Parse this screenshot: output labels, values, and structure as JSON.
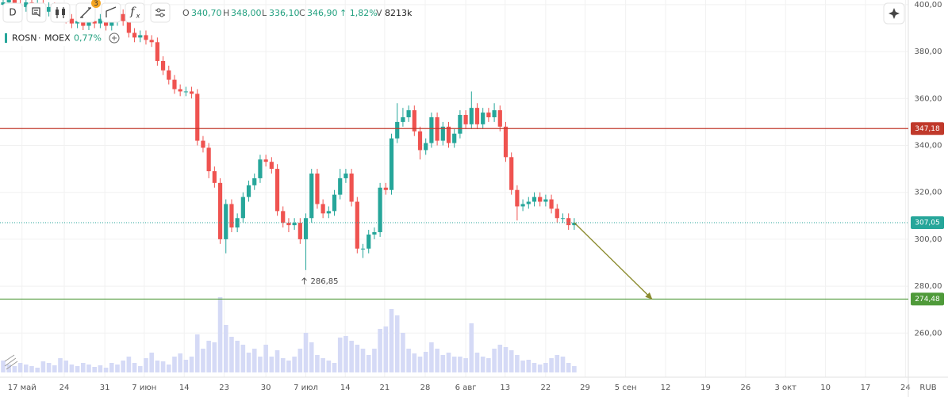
{
  "header": {
    "interval": "D",
    "badge": "3",
    "fx_main": "f",
    "fx_sub": "x",
    "ohlc": [
      {
        "key": "O",
        "value": "340,70"
      },
      {
        "key": "H",
        "value": "348,00"
      },
      {
        "key": "L",
        "value": "336,10"
      },
      {
        "key": "C",
        "value": "346,90"
      }
    ],
    "change": "↑ 1,82%",
    "volume_key": "V",
    "volume": "8213k",
    "symbol": "ROSN",
    "separator": "·",
    "exchange": "MOEX",
    "symbol_change": "0,77%",
    "currency": "RUB"
  },
  "chart_data": {
    "type": "candlestick",
    "categories": [
      null,
      null,
      null,
      null,
      null,
      null,
      null,
      null,
      null,
      null,
      null,
      null,
      null,
      null,
      null,
      null,
      null,
      null,
      null,
      null,
      null,
      null,
      null,
      null,
      null,
      null,
      null,
      null,
      null,
      null,
      null,
      null,
      null,
      null,
      null,
      null,
      null,
      null,
      null,
      null,
      null,
      null,
      null,
      null,
      null,
      null,
      null,
      null,
      null,
      null,
      null,
      null,
      null,
      null,
      null,
      null,
      null,
      null,
      null,
      null,
      null,
      null,
      null,
      null,
      null,
      null,
      null,
      null,
      null,
      null,
      null,
      null,
      null,
      null,
      null,
      null,
      null,
      null,
      null,
      null,
      null,
      null,
      null,
      null,
      null,
      null,
      null,
      null,
      null,
      null,
      null,
      null,
      null,
      null,
      null,
      null,
      null,
      null,
      null,
      null,
      null
    ],
    "open": [
      400,
      401,
      402,
      400,
      399,
      401,
      398,
      400,
      397,
      399,
      396,
      398,
      394,
      392,
      393,
      391,
      393,
      392,
      394,
      391,
      393,
      396,
      393,
      388,
      386,
      387,
      385,
      384,
      376,
      372,
      368,
      364,
      363,
      363,
      362,
      342,
      339,
      329,
      324,
      300,
      315,
      305,
      309,
      318,
      323,
      326,
      334,
      333,
      330,
      312,
      307,
      306,
      307,
      300,
      309,
      328,
      315,
      311,
      312,
      319,
      326,
      328,
      316,
      296,
      296,
      302,
      303,
      322,
      321,
      343,
      350,
      352,
      355,
      346,
      338,
      341,
      352,
      342,
      348,
      341,
      345,
      353,
      349,
      356,
      349,
      354,
      352,
      355,
      348,
      335,
      321,
      314,
      315,
      316,
      318,
      316,
      317,
      313,
      309,
      309,
      306
    ],
    "high": [
      403,
      404,
      404,
      402,
      403,
      403,
      402,
      402,
      401,
      401,
      400,
      400,
      396,
      395,
      395,
      395,
      395,
      396,
      396,
      395,
      398,
      398,
      395,
      390,
      389,
      389,
      387,
      386,
      378,
      374,
      370,
      366,
      365,
      365,
      364,
      344,
      341,
      331,
      326,
      317,
      317,
      311,
      320,
      325,
      328,
      336,
      336,
      335,
      332,
      314,
      309,
      309,
      309,
      311,
      330,
      330,
      317,
      314,
      321,
      330,
      330,
      330,
      318,
      298,
      304,
      305,
      324,
      324,
      345,
      358,
      356,
      357,
      357,
      348,
      343,
      354,
      354,
      350,
      350,
      347,
      355,
      355,
      363,
      358,
      356,
      356,
      358,
      357,
      350,
      337,
      323,
      317,
      318,
      320,
      320,
      319,
      319,
      315,
      311,
      311,
      309
    ],
    "low": [
      398,
      399,
      398,
      397,
      397,
      396,
      396,
      395,
      395,
      394,
      394,
      392,
      390,
      390,
      389,
      389,
      390,
      390,
      389,
      389,
      391,
      391,
      386,
      384,
      384,
      383,
      382,
      374,
      370,
      366,
      362,
      361,
      361,
      360,
      340,
      337,
      326,
      322,
      298,
      294,
      303,
      303,
      307,
      316,
      321,
      324,
      331,
      328,
      310,
      305,
      303,
      304,
      298,
      286.85,
      307,
      313,
      309,
      309,
      310,
      317,
      324,
      314,
      294,
      292,
      294,
      300,
      301,
      319,
      319,
      341,
      348,
      350,
      344,
      334,
      336,
      339,
      340,
      340,
      339,
      339,
      343,
      347,
      347,
      347,
      347,
      350,
      350,
      346,
      333,
      319,
      308,
      312,
      313,
      314,
      314,
      314,
      311,
      307,
      307,
      304,
      304
    ],
    "close": [
      401,
      402,
      400,
      399,
      401,
      398,
      400,
      397,
      399,
      396,
      398,
      394,
      392,
      393,
      391,
      393,
      392,
      394,
      391,
      393,
      396,
      393,
      388,
      386,
      387,
      385,
      384,
      376,
      372,
      368,
      364,
      363,
      363,
      362,
      342,
      339,
      329,
      324,
      300,
      315,
      305,
      309,
      318,
      323,
      326,
      334,
      333,
      330,
      312,
      307,
      306,
      307,
      300,
      309,
      328,
      315,
      311,
      312,
      319,
      326,
      328,
      316,
      296,
      296,
      302,
      303,
      322,
      321,
      343,
      350,
      352,
      355,
      346,
      338,
      341,
      352,
      342,
      348,
      341,
      345,
      353,
      349,
      356,
      349,
      354,
      352,
      355,
      348,
      335,
      321,
      314,
      315,
      316,
      318,
      316,
      317,
      313,
      309,
      309,
      306,
      307.05
    ],
    "volume": [
      15,
      10,
      8,
      12,
      10,
      8,
      6,
      14,
      12,
      9,
      18,
      15,
      10,
      8,
      12,
      10,
      7,
      9,
      6,
      12,
      10,
      15,
      20,
      12,
      8,
      18,
      25,
      15,
      14,
      10,
      20,
      24,
      16,
      20,
      48,
      30,
      40,
      38,
      95,
      60,
      45,
      40,
      35,
      25,
      30,
      20,
      35,
      20,
      28,
      18,
      15,
      20,
      30,
      50,
      38,
      22,
      18,
      15,
      12,
      44,
      46,
      40,
      35,
      30,
      22,
      30,
      55,
      58,
      80,
      72,
      50,
      30,
      24,
      20,
      26,
      38,
      30,
      22,
      25,
      20,
      20,
      18,
      62,
      25,
      20,
      18,
      30,
      35,
      32,
      28,
      22,
      15,
      16,
      12,
      10,
      12,
      18,
      22,
      20,
      12,
      8
    ],
    "colors": {
      "up": "#26a69a",
      "down": "#ef5350",
      "volume": "#d5daf6"
    },
    "ylim": [
      243.2,
      402
    ],
    "yticks": [
      {
        "value": 260,
        "label": "260,00"
      },
      {
        "value": 280,
        "label": "280,00"
      },
      {
        "value": 300,
        "label": "300,00"
      },
      {
        "value": 320,
        "label": "320,00"
      },
      {
        "value": 340,
        "label": "340,00"
      },
      {
        "value": 360,
        "label": "360,00"
      },
      {
        "value": 380,
        "label": "380,00"
      },
      {
        "value": 400,
        "label": "400,00"
      }
    ],
    "xlim": [
      -0.556,
      158.5
    ],
    "xticks": [
      {
        "value": 3.3,
        "label": "17 май"
      },
      {
        "value": 10.7,
        "label": "24"
      },
      {
        "value": 17.8,
        "label": "31"
      },
      {
        "value": 24.7,
        "label": "7 июн"
      },
      {
        "value": 31.7,
        "label": "14"
      },
      {
        "value": 38.7,
        "label": "23"
      },
      {
        "value": 46,
        "label": "30"
      },
      {
        "value": 53,
        "label": "7 июл"
      },
      {
        "value": 59.9,
        "label": "14"
      },
      {
        "value": 66.8,
        "label": "21"
      },
      {
        "value": 73.9,
        "label": "28"
      },
      {
        "value": 81,
        "label": "6 авг"
      },
      {
        "value": 87.9,
        "label": "13"
      },
      {
        "value": 95,
        "label": "22"
      },
      {
        "value": 101.9,
        "label": "29"
      },
      {
        "value": 109,
        "label": "5 сен"
      },
      {
        "value": 116,
        "label": "12"
      },
      {
        "value": 123,
        "label": "19"
      },
      {
        "value": 130,
        "label": "26"
      },
      {
        "value": 137,
        "label": "3 окт"
      },
      {
        "value": 144,
        "label": "10"
      },
      {
        "value": 151,
        "label": "17"
      },
      {
        "value": 158,
        "label": "24"
      }
    ],
    "grid": true,
    "levels": [
      {
        "value": 347.18,
        "label": "347,18",
        "color": "#c0392b",
        "dotted": false
      },
      {
        "value": 307.05,
        "label": "307,05",
        "color": "#26a69a",
        "dotted": true
      },
      {
        "value": 274.48,
        "label": "274,48",
        "color": "#4f9a3a",
        "dotted": false
      }
    ],
    "annotations": [
      {
        "x": 53,
        "value": 286.85,
        "label": "286,85"
      }
    ],
    "trend_arrow": {
      "x": [
        100,
        113.6
      ],
      "y": [
        307.05,
        274.48
      ],
      "color": "#8b8b2e"
    }
  }
}
